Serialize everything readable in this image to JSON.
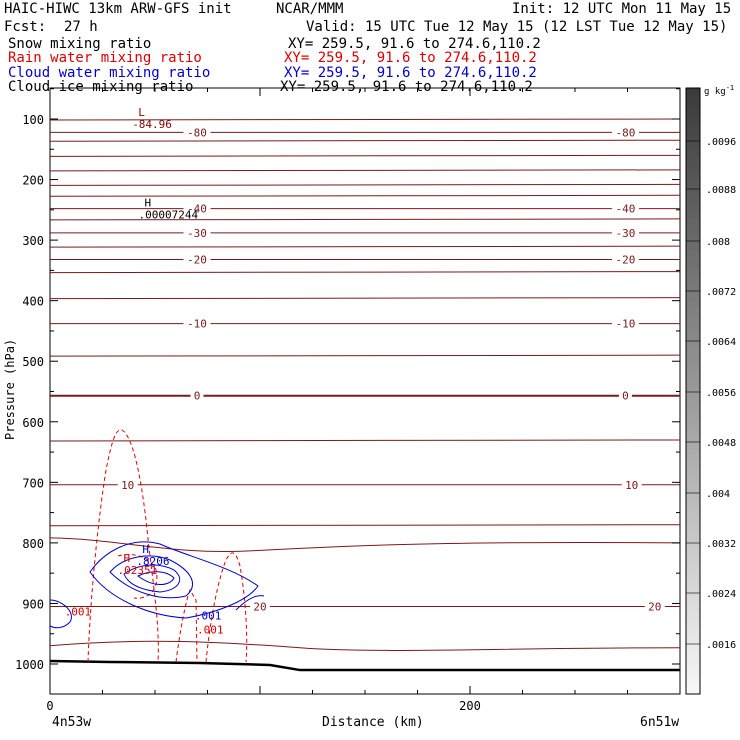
{
  "header": {
    "left1": "HAIC-HIWC 13km ARW-GFS init",
    "org": "NCAR/MMM",
    "init": "Init: 12 UTC Mon 11 May 15",
    "fcst_label": "Fcst:",
    "fcst_value": "27 h",
    "valid": "Valid: 15 UTC Tue 12 May 15 (12 LST Tue 12 May 15)"
  },
  "fields": [
    {
      "name": "Snow mixing ratio",
      "xy": "XY= 259.5, 91.6 to 274.6,110.2",
      "color": "#000000"
    },
    {
      "name": "Rain water mixing ratio",
      "xy": "XY= 259.5, 91.6 to 274.6,110.2",
      "color": "#e00000"
    },
    {
      "name": "Cloud water mixing ratio",
      "xy": "XY= 259.5, 91.6 to 274.6,110.2",
      "color": "#0000d0"
    },
    {
      "name": "Cloud ice mixing ratio",
      "xy": "XY= 259.5, 91.6 to 274.6,110.2",
      "color": "#000000"
    }
  ],
  "colorbar": {
    "unit": "g kg",
    "unit_exp": "-1",
    "labels": [
      ".0096",
      ".0088",
      ".008",
      ".0072",
      ".0064",
      ".0056",
      ".0048",
      ".004",
      ".0032",
      ".0024",
      ".0016"
    ]
  },
  "chart_data": {
    "type": "contour",
    "xlabel": "Distance (km)",
    "ylabel": "Pressure (hPa)",
    "xlim": [
      0,
      300
    ],
    "ylim": [
      1050,
      50
    ],
    "x_ticks": [
      0,
      200
    ],
    "y_ticks": [
      100,
      200,
      300,
      400,
      500,
      600,
      700,
      800,
      900,
      1000
    ],
    "x_endpoints": {
      "left": "4n53w",
      "right": "6n51w"
    },
    "temperature_isotherms": [
      {
        "label": "-80",
        "p": 122
      },
      {
        "label": "-40",
        "p": 248
      },
      {
        "label": "-30",
        "p": 288
      },
      {
        "label": "-20",
        "p": 332
      },
      {
        "label": "-10",
        "p": 438
      },
      {
        "label": "0",
        "p": 557
      },
      {
        "label": "10",
        "p": 704
      },
      {
        "label": "20",
        "p": 905
      }
    ],
    "annotations": [
      {
        "text": "L",
        "value": "-84.96",
        "x": 42,
        "p": 108,
        "color": "#8b0000"
      },
      {
        "text": "H",
        "value": ".00007244",
        "x": 45,
        "p": 258,
        "color": "#000000"
      },
      {
        "text": "H",
        "value": ".8206",
        "x": 44,
        "p": 830,
        "color": "#0000d0"
      },
      {
        "text": "H",
        "value": ".02351",
        "x": 35,
        "p": 845,
        "color": "#e00000"
      }
    ],
    "contour_labels": [
      {
        "text": ".001",
        "x": 7,
        "p": 913,
        "color": "#e00000"
      },
      {
        "text": ".001",
        "x": 69,
        "p": 920,
        "color": "#0000d0"
      },
      {
        "text": ".001",
        "x": 70,
        "p": 943,
        "color": "#e00000"
      }
    ],
    "terrain": {
      "description": "surface pressure line",
      "p_left": 995,
      "p_right": 1010
    }
  }
}
